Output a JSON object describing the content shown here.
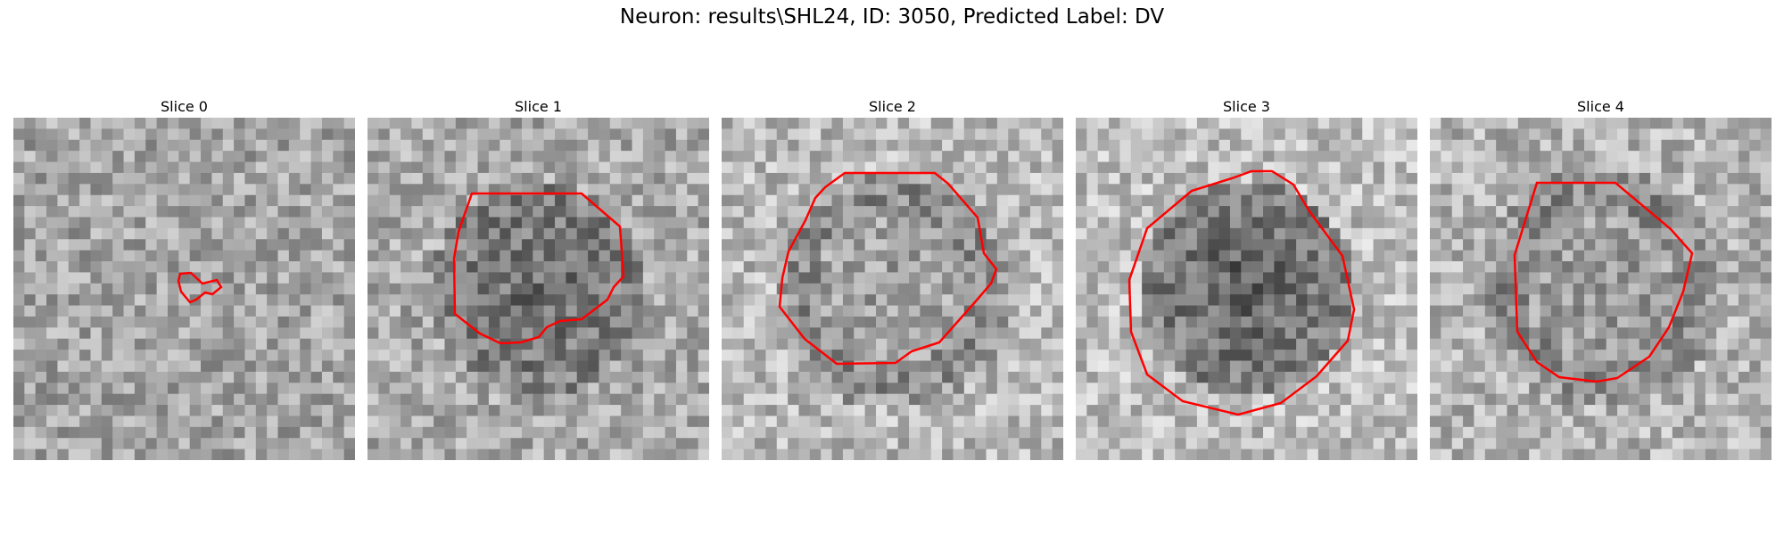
{
  "figure": {
    "title": "Neuron: results\\SHL24, ID: 3050, Predicted Label: DV"
  },
  "slices": [
    {
      "label": "Slice 0",
      "base": 165,
      "dark": 0.0,
      "ring": 0.0
    },
    {
      "label": "Slice 1",
      "base": 170,
      "dark": 0.45,
      "ring": 0.0
    },
    {
      "label": "Slice 2",
      "base": 185,
      "dark": 0.2,
      "ring": 0.35
    },
    {
      "label": "Slice 3",
      "base": 190,
      "dark": 0.7,
      "ring": 0.0
    },
    {
      "label": "Slice 4",
      "base": 180,
      "dark": 0.2,
      "ring": 0.3
    }
  ],
  "colors": {
    "contour": "#ff0000"
  }
}
